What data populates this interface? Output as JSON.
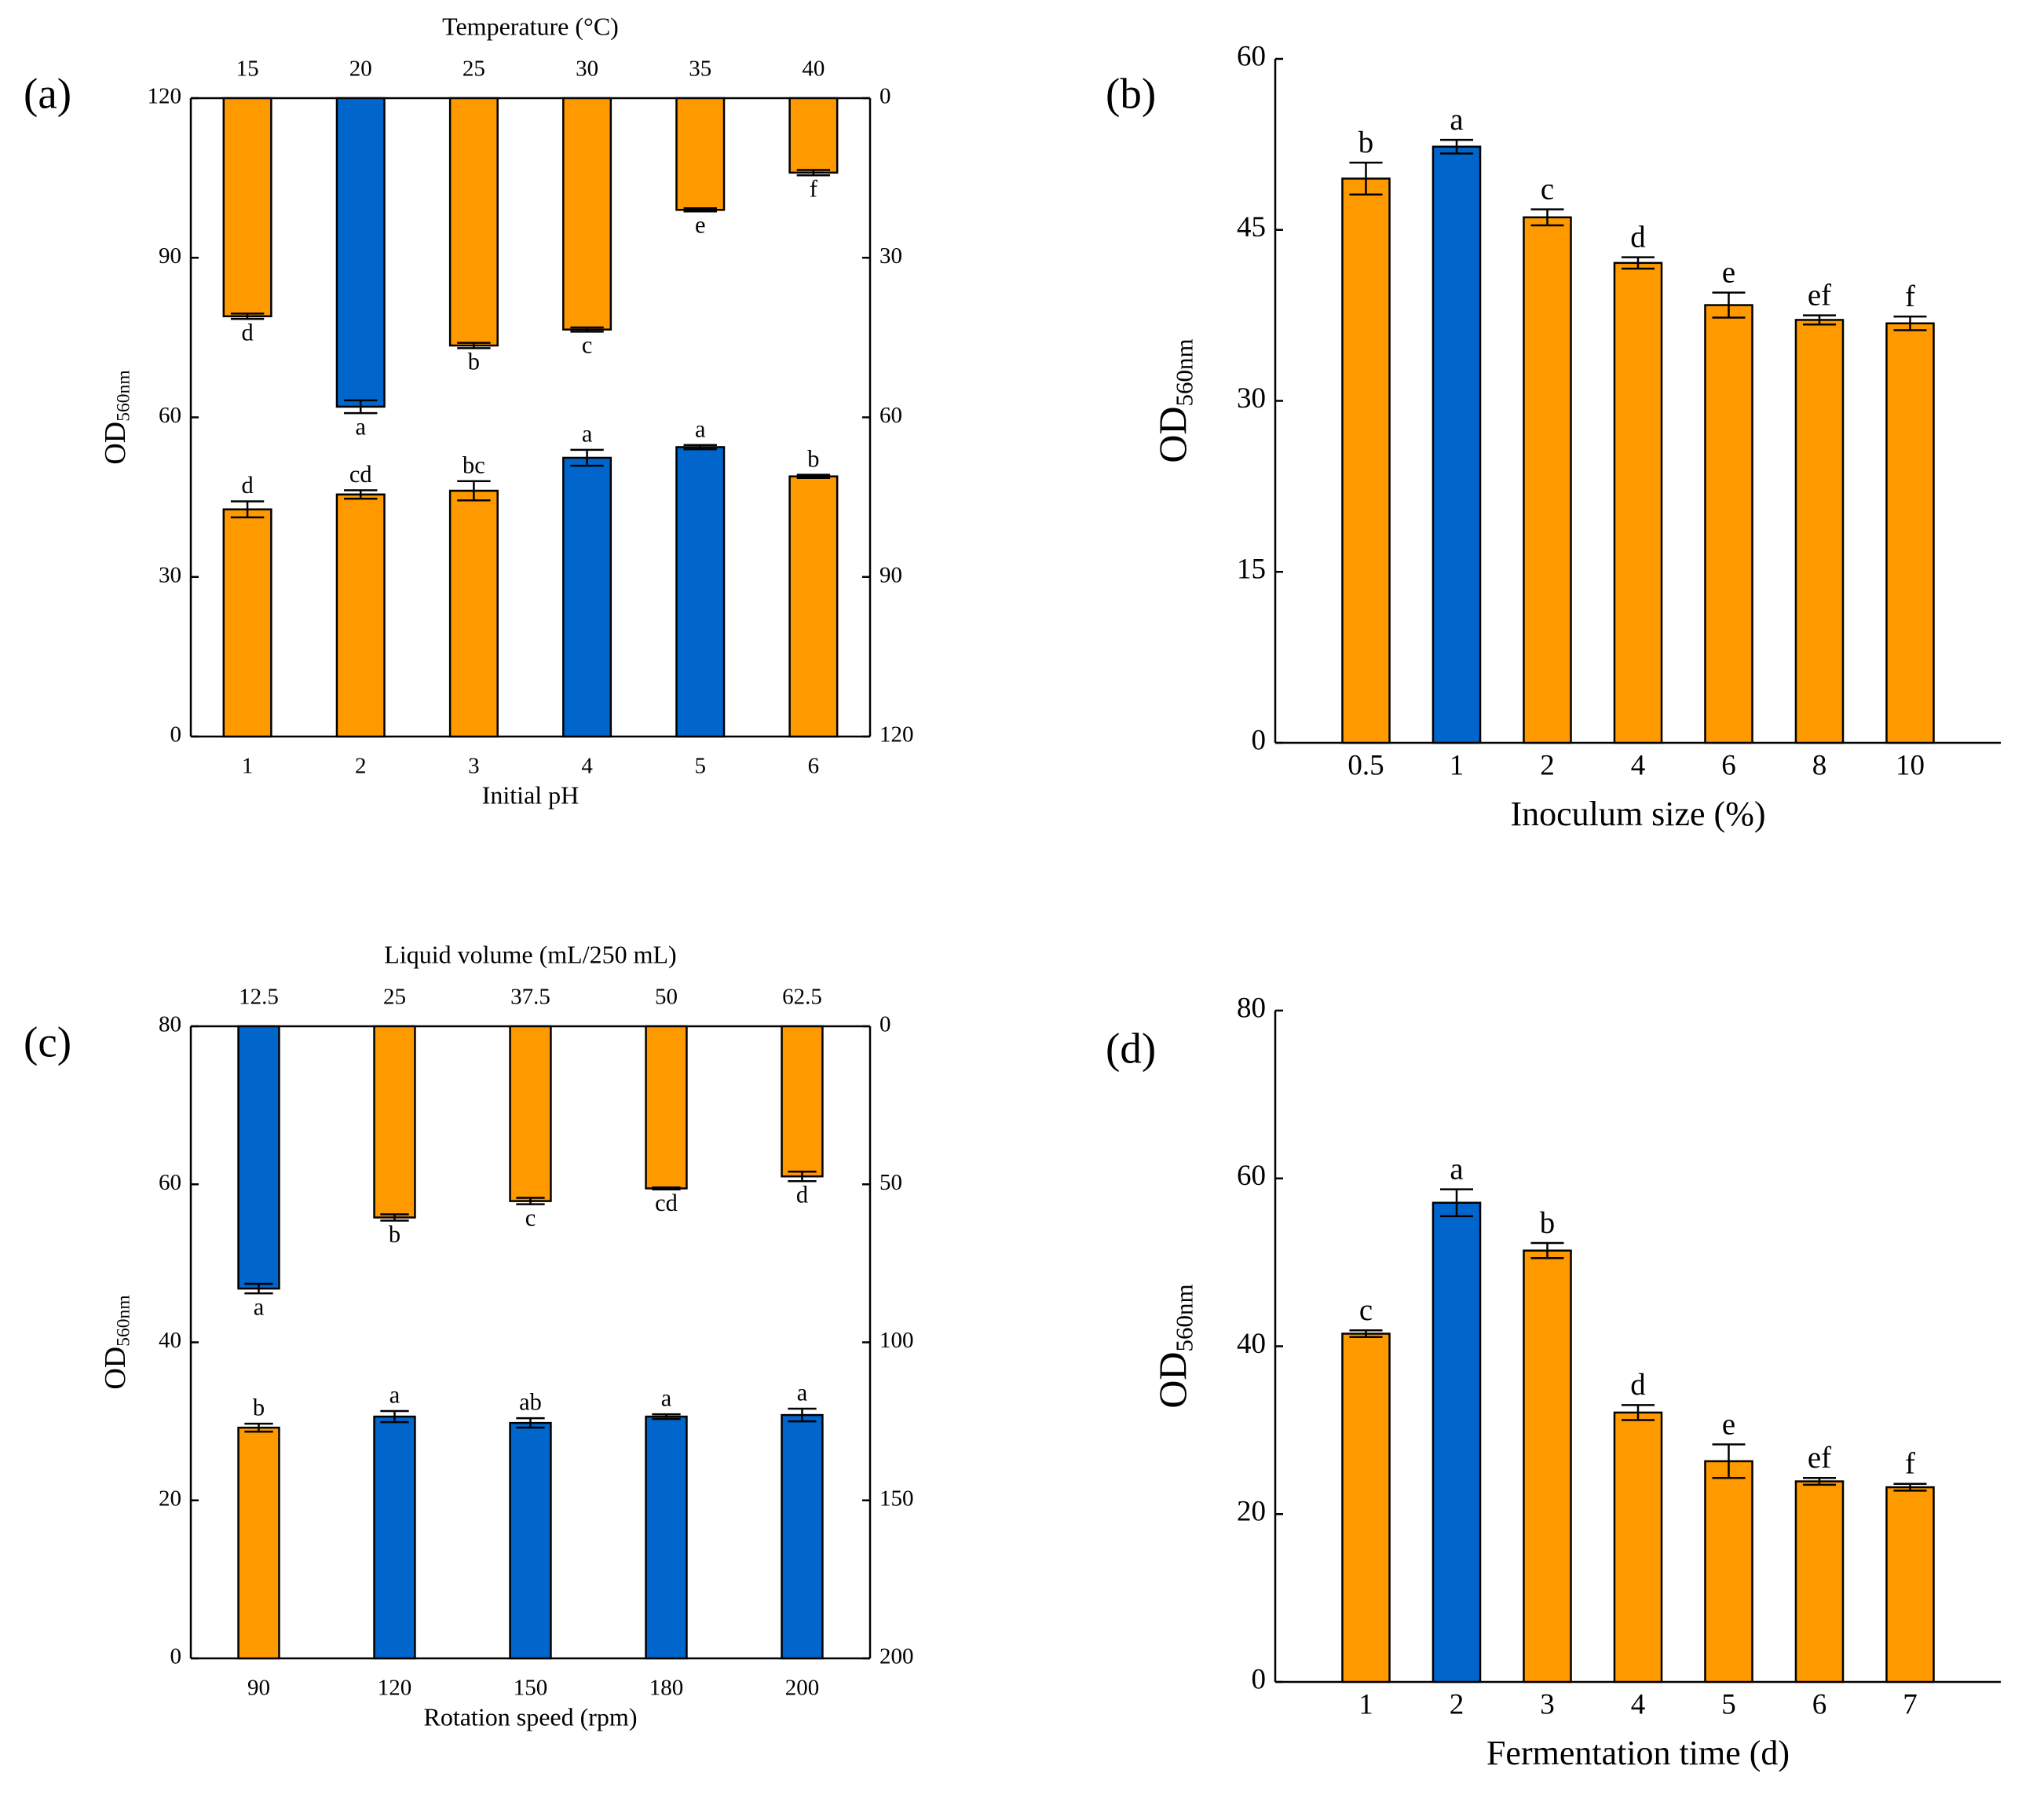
{
  "chart_data": [
    {
      "type": "bar",
      "panel": "(a)",
      "xlabel": "Initial pH",
      "ylabel": [
        "OD",
        "560nm"
      ],
      "categories": [
        "1",
        "2",
        "3",
        "4",
        "5",
        "6"
      ],
      "ylim": [
        0,
        120
      ],
      "yticks": [
        0,
        30,
        60,
        90,
        120
      ],
      "x2label": "Temperature (°C)",
      "x2categories": [
        "15",
        "20",
        "25",
        "30",
        "35",
        "40"
      ],
      "y2lim": [
        0,
        120
      ],
      "y2ticks": [
        0,
        30,
        60,
        90,
        120
      ],
      "y2_inverted": true,
      "series": [
        {
          "values": [
            42.7,
            45.5,
            46.2,
            52.4,
            54.4,
            48.9
          ],
          "errors": [
            1.5,
            0.8,
            1.8,
            1.5,
            0.4,
            0.3
          ],
          "letters": [
            "d",
            "cd",
            "bc",
            "a",
            "a",
            "b"
          ],
          "colors": [
            "#ff9900",
            "#ff9900",
            "#ff9900",
            "#0066cc",
            "#0066cc",
            "#ff9900"
          ]
        },
        {
          "axis": "y2",
          "values": [
            41,
            58,
            46.5,
            43.5,
            21,
            14
          ],
          "errors": [
            0.5,
            1.2,
            0.5,
            0.4,
            0.3,
            0.5
          ],
          "letters": [
            "d",
            "a",
            "b",
            "c",
            "e",
            "f"
          ],
          "colors": [
            "#ff9900",
            "#0066cc",
            "#ff9900",
            "#ff9900",
            "#ff9900",
            "#ff9900"
          ]
        }
      ]
    },
    {
      "type": "bar",
      "panel": "(b)",
      "xlabel": "Inoculum size (%)",
      "ylabel": [
        "OD",
        "560nm"
      ],
      "categories": [
        "0.5",
        "1",
        "2",
        "4",
        "6",
        "8",
        "10"
      ],
      "ylim": [
        0,
        60
      ],
      "yticks": [
        0,
        15,
        30,
        45,
        60
      ],
      "series": [
        {
          "values": [
            49.5,
            52.3,
            46.1,
            42.1,
            38.4,
            37.1,
            36.8
          ],
          "errors": [
            1.4,
            0.6,
            0.7,
            0.5,
            1.1,
            0.4,
            0.6
          ],
          "letters": [
            "b",
            "a",
            "c",
            "d",
            "e",
            "ef",
            "f"
          ],
          "colors": [
            "#ff9900",
            "#0066cc",
            "#ff9900",
            "#ff9900",
            "#ff9900",
            "#ff9900",
            "#ff9900"
          ]
        }
      ]
    },
    {
      "type": "bar",
      "panel": "(c)",
      "xlabel": "Rotation speed (rpm)",
      "ylabel": [
        "OD",
        "560nm"
      ],
      "categories": [
        "90",
        "120",
        "150",
        "180",
        "200"
      ],
      "ylim": [
        0,
        80
      ],
      "yticks": [
        0,
        20,
        40,
        60,
        80
      ],
      "x2label": "Liquid volume (mL/250 mL)",
      "x2categories": [
        "12.5",
        "25",
        "37.5",
        "50",
        "62.5"
      ],
      "y2lim": [
        0,
        200
      ],
      "y2ticks": [
        0,
        50,
        100,
        150,
        200
      ],
      "y2_inverted": true,
      "series": [
        {
          "values": [
            29.2,
            30.6,
            29.8,
            30.6,
            30.8
          ],
          "errors": [
            0.5,
            0.7,
            0.6,
            0.3,
            0.8
          ],
          "letters": [
            "b",
            "a",
            "ab",
            "a",
            "a"
          ],
          "colors": [
            "#ff9900",
            "#0066cc",
            "#0066cc",
            "#0066cc",
            "#0066cc"
          ]
        },
        {
          "axis": "y2",
          "values": [
            83,
            60.5,
            55.3,
            51.3,
            47.5
          ],
          "errors": [
            1.5,
            1,
            1,
            0.3,
            1.5
          ],
          "letters": [
            "a",
            "b",
            "c",
            "cd",
            "d"
          ],
          "colors": [
            "#0066cc",
            "#ff9900",
            "#ff9900",
            "#ff9900",
            "#ff9900"
          ]
        }
      ]
    },
    {
      "type": "bar",
      "panel": "(d)",
      "xlabel": "Fermentation time  (d)",
      "ylabel": [
        "OD",
        "560nm"
      ],
      "categories": [
        "1",
        "2",
        "3",
        "4",
        "5",
        "6",
        "7"
      ],
      "ylim": [
        0,
        80
      ],
      "yticks": [
        0,
        20,
        40,
        60,
        80
      ],
      "series": [
        {
          "values": [
            41.5,
            57.1,
            51.4,
            32.1,
            26.3,
            23.9,
            23.2
          ],
          "errors": [
            0.4,
            1.6,
            0.9,
            0.9,
            2.0,
            0.4,
            0.4
          ],
          "letters": [
            "c",
            "a",
            "b",
            "d",
            "e",
            "ef",
            "f"
          ],
          "colors": [
            "#ff9900",
            "#0066cc",
            "#ff9900",
            "#ff9900",
            "#ff9900",
            "#ff9900",
            "#ff9900"
          ]
        }
      ]
    }
  ]
}
